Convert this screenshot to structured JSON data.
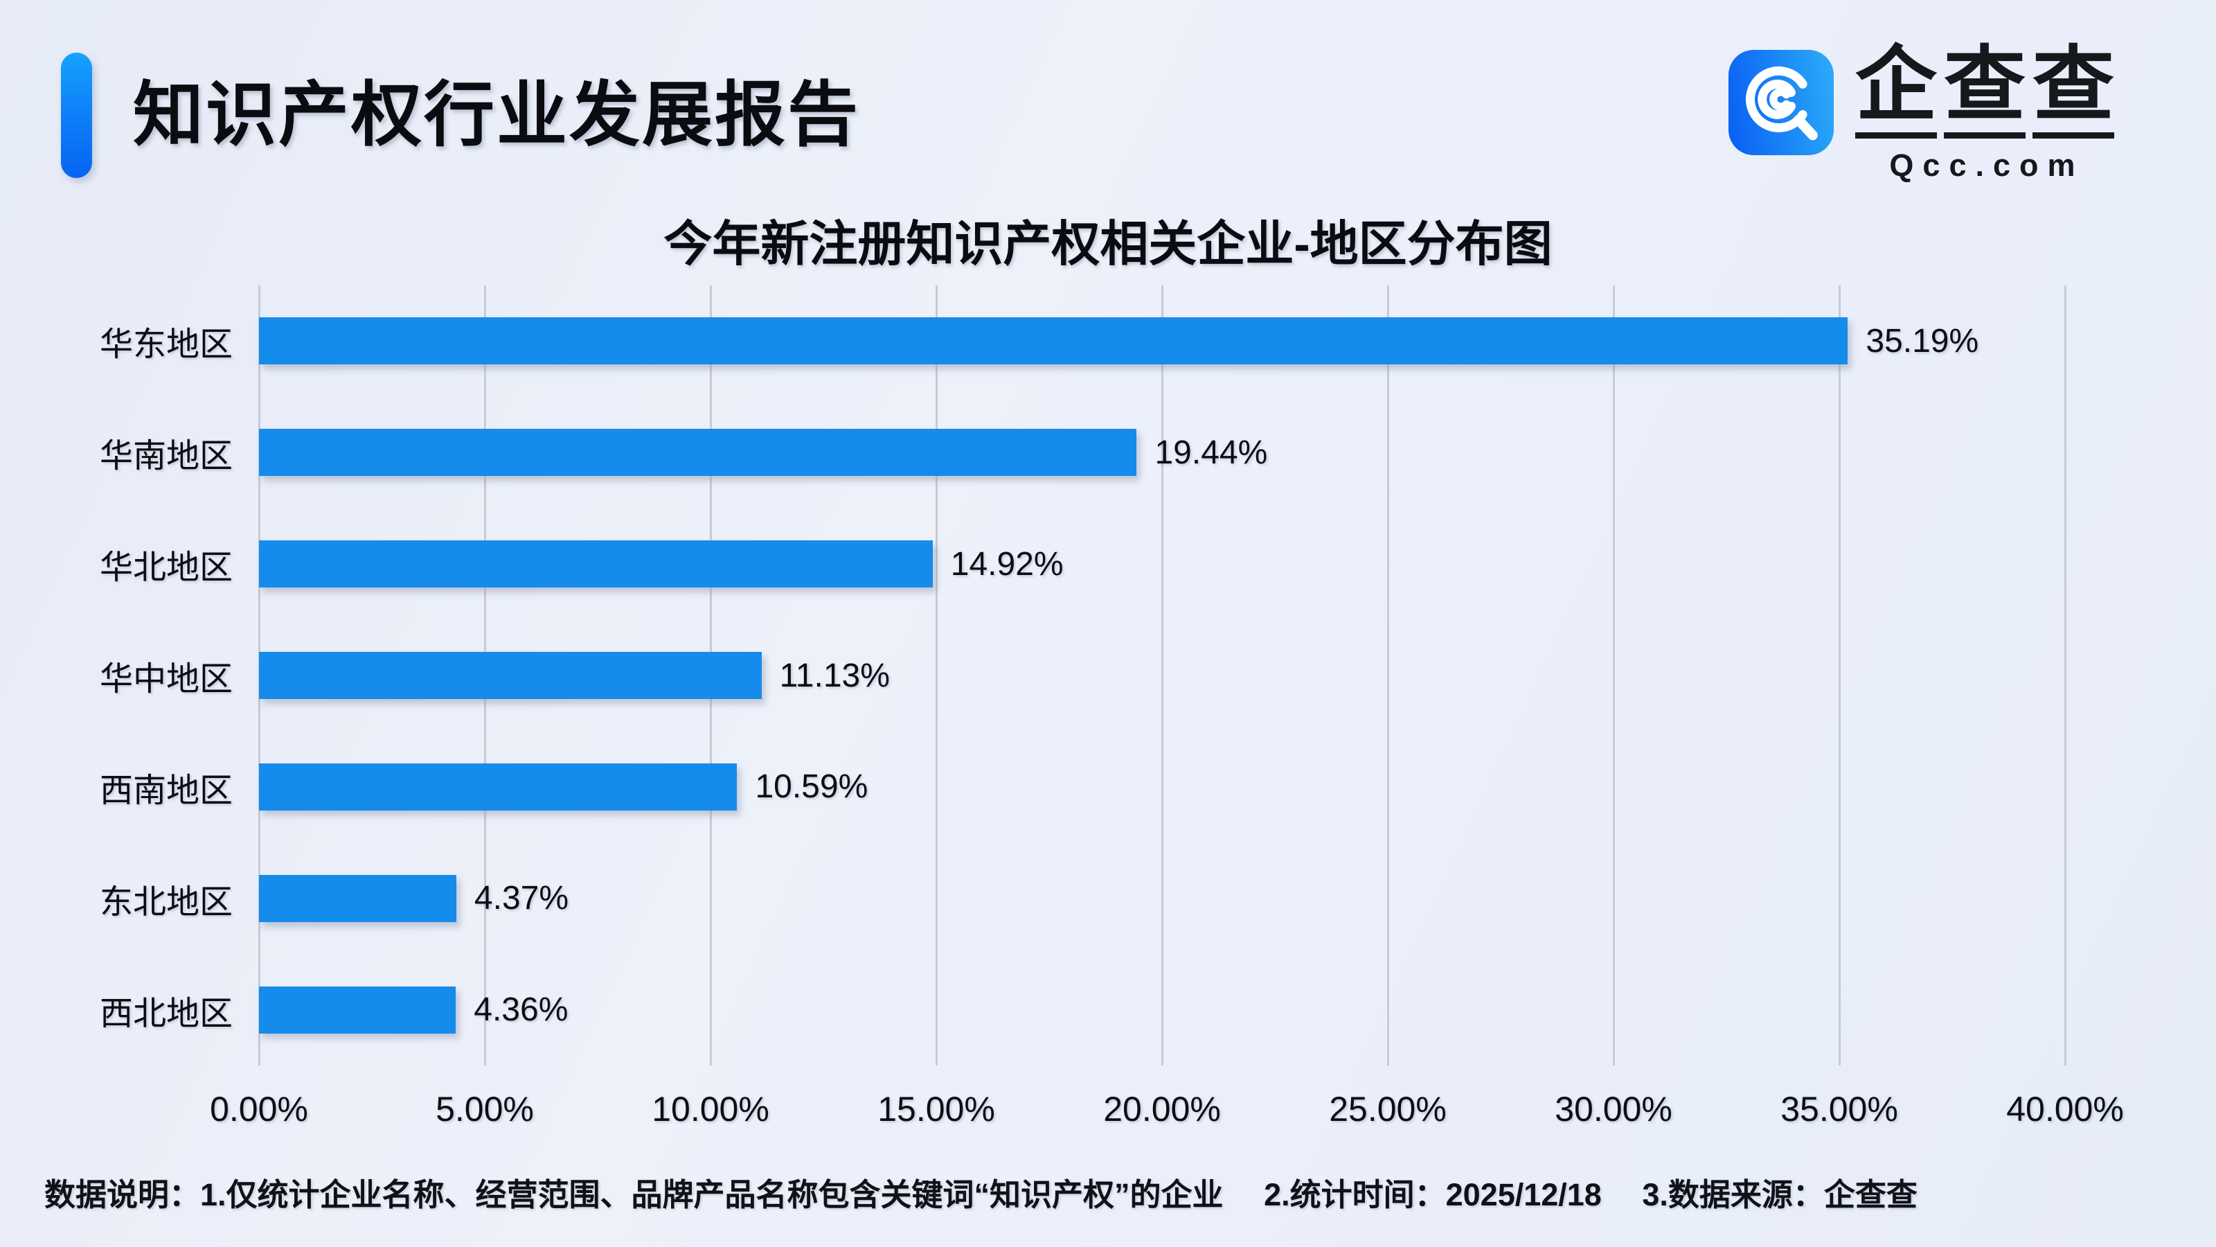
{
  "header": {
    "title": "知识产权行业发展报告"
  },
  "logo": {
    "name": "企查查",
    "chars": [
      "企",
      "查",
      "查"
    ],
    "domain": "Qcc.com",
    "icon": "qcc-magnifier-icon",
    "icon_gradient": [
      "#0b63f4",
      "#2aa9f8"
    ]
  },
  "chart_data": {
    "type": "bar",
    "orientation": "horizontal",
    "title": "今年新注册知识产权相关企业-地区分布图",
    "categories": [
      "华东地区",
      "华南地区",
      "华北地区",
      "华中地区",
      "西南地区",
      "东北地区",
      "西北地区"
    ],
    "values": [
      35.19,
      19.44,
      14.92,
      11.13,
      10.59,
      4.37,
      4.36
    ],
    "value_labels": [
      "35.19%",
      "19.44%",
      "14.92%",
      "11.13%",
      "10.59%",
      "4.37%",
      "4.36%"
    ],
    "x_ticks": [
      "0.00%",
      "5.00%",
      "10.00%",
      "15.00%",
      "20.00%",
      "25.00%",
      "30.00%",
      "35.00%",
      "40.00%"
    ],
    "xlim": [
      0,
      40
    ],
    "xlabel": "",
    "ylabel": "",
    "grid": true,
    "legend": "none",
    "bar_color": "#158BEB"
  },
  "footer": {
    "label": "数据说明：",
    "items": [
      "1.仅统计企业名称、经营范围、品牌产品名称包含关键词“知识产权”的企业",
      "2.统计时间：2025/12/18",
      "3.数据来源：企查查"
    ]
  },
  "colors": {
    "background": "#e9eefa",
    "bar": "#158BEB",
    "gridline": "#c7cbd5",
    "text": "#0c0e13",
    "accent_gradient_top": "#14a3ff",
    "accent_gradient_bottom": "#0665f3"
  }
}
